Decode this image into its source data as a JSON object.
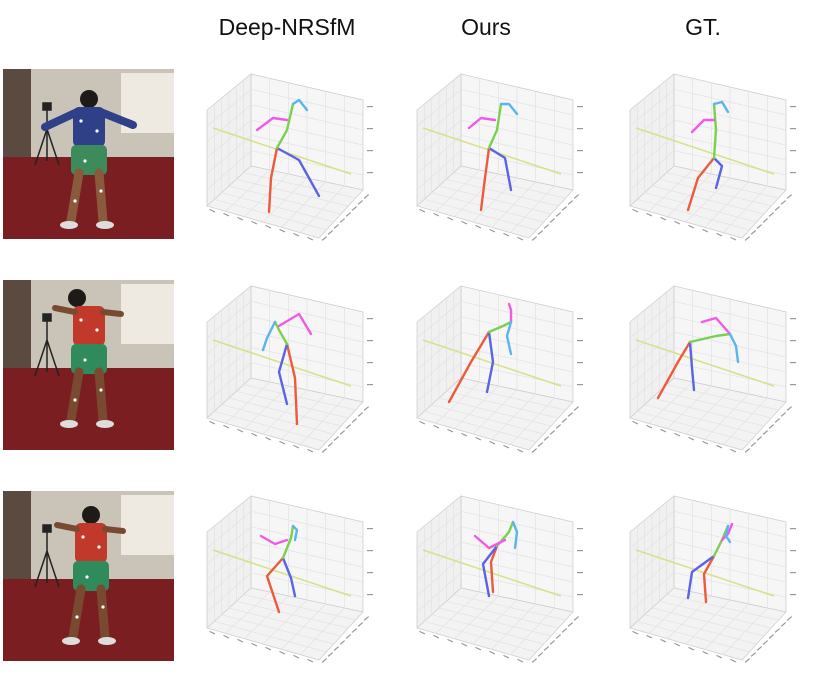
{
  "headers": [
    "Deep-NRSfM",
    "Ours",
    "GT."
  ],
  "colors": {
    "right_leg": "#ee5a3c",
    "left_leg": "#5a64e6",
    "torso": "#7ad14f",
    "right_arm": "#f05ae6",
    "left_arm": "#5ab4f0",
    "floor_line": "#d9e08a",
    "grid": "#e2e2e2",
    "room_wall": "#c9c3b8",
    "room_floor": "#7a1e22"
  },
  "rows": [
    {
      "person": {
        "shirt": "#2f3f88",
        "shorts": "#3d8a5a",
        "skin": "#8a5a3c"
      },
      "poses": [
        "pose-a1",
        "pose-a2",
        "pose-a3"
      ]
    },
    {
      "person": {
        "shirt": "#c0392b",
        "shorts": "#2f8a5c",
        "skin": "#7a4a30"
      },
      "poses": [
        "pose-b1",
        "pose-b2",
        "pose-b3"
      ]
    },
    {
      "person": {
        "shirt": "#c0392b",
        "shorts": "#2f8a5c",
        "skin": "#7a4a30"
      },
      "poses": [
        "pose-c1",
        "pose-c2",
        "pose-c3"
      ]
    }
  ]
}
